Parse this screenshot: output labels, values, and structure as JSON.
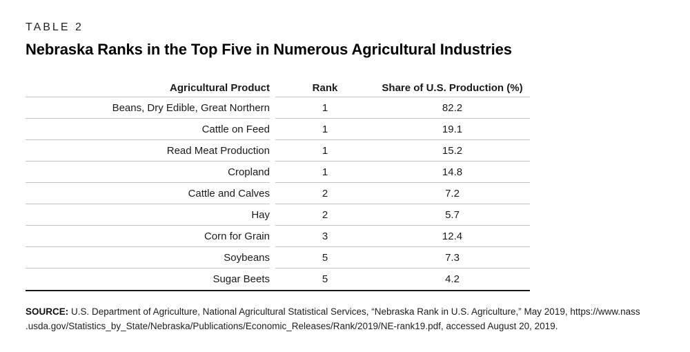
{
  "eyebrow": "TABLE 2",
  "title": "Nebraska Ranks in the Top Five in Numerous Agricultural Industries",
  "table": {
    "columns": [
      "Agricultural Product",
      "Rank",
      "Share of U.S. Production (%)"
    ],
    "rows": [
      {
        "product": "Beans, Dry Edible, Great Northern",
        "rank": "1",
        "share": "82.2"
      },
      {
        "product": "Cattle on Feed",
        "rank": "1",
        "share": "19.1"
      },
      {
        "product": "Read Meat Production",
        "rank": "1",
        "share": "15.2"
      },
      {
        "product": "Cropland",
        "rank": "1",
        "share": "14.8"
      },
      {
        "product": "Cattle and Calves",
        "rank": "2",
        "share": "7.2"
      },
      {
        "product": "Hay",
        "rank": "2",
        "share": "5.7"
      },
      {
        "product": "Corn for Grain",
        "rank": "3",
        "share": "12.4"
      },
      {
        "product": "Soybeans",
        "rank": "5",
        "share": "7.3"
      },
      {
        "product": "Sugar Beets",
        "rank": "5",
        "share": "4.2"
      }
    ]
  },
  "source": {
    "label": "SOURCE:",
    "line1": "U.S. Department of Agriculture, National Agricultural Statistical Services, “Nebraska Rank in U.S. Agriculture,” May 2019, https://www.nass",
    "line2": ".usda.gov/Statistics_by_State/Nebraska/Publications/Economic_Releases/Rank/2019/NE-rank19.pdf, accessed August 20, 2019."
  },
  "colors": {
    "rule_gray": "#c3c3c3",
    "rule_black": "#161616",
    "text": "#1a1a1a"
  }
}
